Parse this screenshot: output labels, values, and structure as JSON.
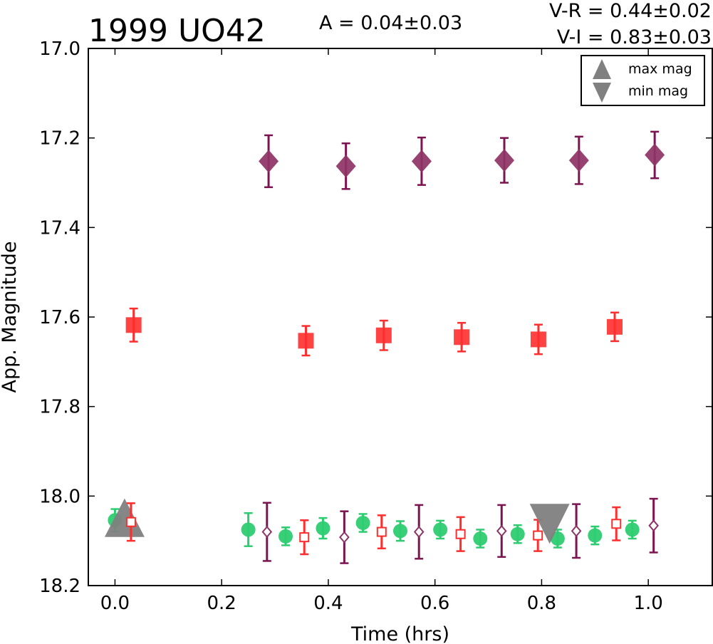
{
  "chart_data": {
    "type": "scatter",
    "title": "1999 UO42",
    "annotations": {
      "amplitude": "A  = 0.04±0.03",
      "vr": "V-R = 0.44±0.02",
      "vi": "V-I  = 0.83±0.03"
    },
    "xlabel": "Time (hrs)",
    "ylabel": "App. Magnitude",
    "xlim": [
      -0.05,
      1.12
    ],
    "ylim": [
      18.2,
      17.0
    ],
    "y_inverted": true,
    "x_ticks": [
      "0.0",
      "0.2",
      "0.4",
      "0.6",
      "0.8",
      "1.0"
    ],
    "x_tick_values": [
      0.0,
      0.2,
      0.4,
      0.6,
      0.8,
      1.0
    ],
    "y_ticks": [
      "17.0",
      "17.2",
      "17.4",
      "17.6",
      "17.8",
      "18.0",
      "18.2"
    ],
    "y_tick_values": [
      17.0,
      17.2,
      17.4,
      17.6,
      17.8,
      18.0,
      18.2
    ],
    "grid": false,
    "legend": {
      "position": "top-right",
      "entries": [
        {
          "label": "max mag",
          "marker": "triangle-up"
        },
        {
          "label": "min mag",
          "marker": "triangle-down"
        }
      ]
    },
    "colors": {
      "green": "#2ecc71",
      "red": "#ff2e2e",
      "purple": "#7b1450",
      "purple_fill": "#8e3366",
      "marker_gray": "#808080"
    },
    "series": [
      {
        "marker": "diamond-filled",
        "color": "#7b1450",
        "x": [
          0.288,
          0.433,
          0.575,
          0.73,
          0.87,
          1.012
        ],
        "y": [
          17.252,
          17.263,
          17.252,
          17.25,
          17.25,
          17.238
        ],
        "err": [
          0.058,
          0.051,
          0.053,
          0.05,
          0.053,
          0.052
        ]
      },
      {
        "marker": "square-filled",
        "color": "#ff2e2e",
        "x": [
          0.035,
          0.358,
          0.504,
          0.65,
          0.794,
          0.937
        ],
        "y": [
          17.618,
          17.653,
          17.641,
          17.645,
          17.65,
          17.622
        ],
        "err": [
          0.037,
          0.033,
          0.033,
          0.032,
          0.033,
          0.032
        ]
      },
      {
        "marker": "circle-filled",
        "color": "#2ecc71",
        "x": [
          0.0,
          0.25,
          0.32,
          0.39,
          0.465,
          0.535,
          0.61,
          0.685,
          0.755,
          0.83,
          0.9,
          0.97
        ],
        "y": [
          18.054,
          18.075,
          18.09,
          18.072,
          18.06,
          18.078,
          18.075,
          18.095,
          18.085,
          18.095,
          18.088,
          18.075
        ],
        "err": [
          0.025,
          0.037,
          0.02,
          0.023,
          0.02,
          0.022,
          0.02,
          0.02,
          0.02,
          0.02,
          0.02,
          0.02
        ]
      },
      {
        "marker": "square-open",
        "color": "#ff2e2e",
        "x": [
          0.03,
          0.355,
          0.5,
          0.648,
          0.793,
          0.94
        ],
        "y": [
          18.058,
          18.092,
          18.08,
          18.085,
          18.088,
          18.062
        ],
        "err": [
          0.042,
          0.038,
          0.037,
          0.038,
          0.035,
          0.037
        ]
      },
      {
        "marker": "diamond-open",
        "color": "#7b1450",
        "x": [
          0.285,
          0.43,
          0.57,
          0.725,
          0.865,
          1.01
        ],
        "y": [
          18.08,
          18.092,
          18.08,
          18.078,
          18.078,
          18.066
        ],
        "err": [
          0.065,
          0.058,
          0.06,
          0.058,
          0.06,
          0.06
        ]
      },
      {
        "name": "max mag",
        "marker": "triangle-up",
        "color": "#808080",
        "x": [
          0.018
        ],
        "y": [
          18.058
        ]
      },
      {
        "name": "min mag",
        "marker": "triangle-down",
        "color": "#808080",
        "x": [
          0.815
        ],
        "y": [
          18.062
        ]
      }
    ]
  }
}
